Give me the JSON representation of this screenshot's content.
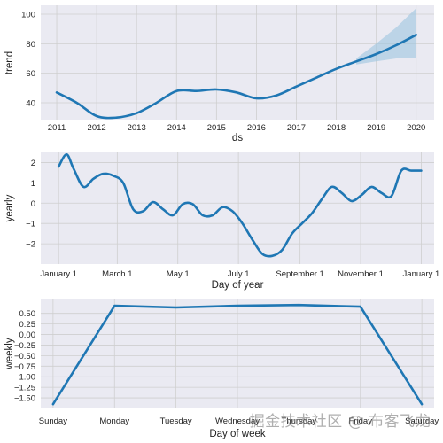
{
  "colors": {
    "line": "#1f77b4",
    "band": "#9cc4e0",
    "panel_bg": "#eaeaf2",
    "grid": "#cfcfcf"
  },
  "watermark": "掘金技术社区 @ 布客飞龙",
  "chart_data": [
    {
      "type": "line",
      "title": "",
      "xlabel": "ds",
      "ylabel": "trend",
      "grid": true,
      "xlim": [
        2010.6,
        2020.45
      ],
      "ylim": [
        28,
        106
      ],
      "x_ticks": [
        2011,
        2012,
        2013,
        2014,
        2015,
        2016,
        2017,
        2018,
        2019,
        2020
      ],
      "x_tick_labels": [
        "2011",
        "2012",
        "2013",
        "2014",
        "2015",
        "2016",
        "2017",
        "2018",
        "2019",
        "2020"
      ],
      "y_ticks": [
        40,
        60,
        80,
        100
      ],
      "y_tick_labels": [
        "40",
        "60",
        "80",
        "100"
      ],
      "series": [
        {
          "x": [
            2011.0,
            2011.5,
            2012.0,
            2012.5,
            2013.0,
            2013.5,
            2014.0,
            2014.5,
            2015.0,
            2015.5,
            2016.0,
            2016.5,
            2017.0,
            2017.5,
            2018.0,
            2018.5,
            2019.0,
            2019.5,
            2020.0
          ],
          "y": [
            47,
            40,
            31,
            30,
            33,
            40,
            48,
            48,
            49,
            47,
            43,
            45,
            51,
            57,
            63,
            68,
            73,
            79,
            86
          ]
        }
      ],
      "uncertainty_band": {
        "x": [
          2018.5,
          2019.0,
          2019.5,
          2020.0
        ],
        "upper": [
          70,
          80,
          91,
          104
        ],
        "lower": [
          66,
          68,
          70,
          70
        ]
      }
    },
    {
      "type": "line",
      "title": "",
      "xlabel": "Day of year",
      "ylabel": "yearly",
      "grid": true,
      "xlim": [
        -18,
        378
      ],
      "ylim": [
        -3,
        2.5
      ],
      "x_ticks": [
        0,
        59,
        120,
        181,
        243,
        304,
        365
      ],
      "x_tick_labels": [
        "January 1",
        "March 1",
        "May 1",
        "July 1",
        "September 1",
        "November 1",
        "January 1"
      ],
      "y_ticks": [
        -2,
        -1,
        0,
        1,
        2
      ],
      "y_tick_labels": [
        "−2",
        "−1",
        "0",
        "1",
        "2"
      ],
      "series": [
        {
          "x": [
            0,
            8,
            15,
            25,
            35,
            45,
            55,
            65,
            75,
            85,
            95,
            105,
            115,
            125,
            135,
            145,
            155,
            165,
            175,
            185,
            195,
            205,
            215,
            225,
            235,
            245,
            255,
            265,
            275,
            285,
            295,
            305,
            315,
            325,
            335,
            345,
            355,
            365
          ],
          "y": [
            1.8,
            2.4,
            1.7,
            0.8,
            1.2,
            1.45,
            1.35,
            1.0,
            -0.3,
            -0.4,
            0.05,
            -0.3,
            -0.6,
            -0.05,
            -0.05,
            -0.6,
            -0.6,
            -0.2,
            -0.4,
            -1.0,
            -1.8,
            -2.5,
            -2.6,
            -2.3,
            -1.5,
            -1.0,
            -0.5,
            0.2,
            0.8,
            0.5,
            0.1,
            0.4,
            0.8,
            0.5,
            0.35,
            1.6,
            1.6,
            1.6
          ]
        }
      ]
    },
    {
      "type": "line",
      "title": "",
      "xlabel": "Day of week",
      "ylabel": "weekly",
      "grid": true,
      "xlim": [
        -0.2,
        6.2
      ],
      "ylim": [
        -1.75,
        0.85
      ],
      "x_ticks": [
        0,
        1,
        2,
        3,
        4,
        5,
        6
      ],
      "x_tick_labels": [
        "Sunday",
        "Monday",
        "Tuesday",
        "Wednesday",
        "Thursday",
        "Friday",
        "Saturday"
      ],
      "y_ticks": [
        0.5,
        0.0,
        -0.5,
        -1.0,
        -1.5
      ],
      "y_tick_labels": [
        "0.50",
        "0.25",
        "0.00",
        "−0.25",
        "−0.50",
        "−0.75",
        "−1.00",
        "−1.25",
        "−1.50"
      ],
      "y_tick_values": [
        0.5,
        0.25,
        0.0,
        -0.25,
        -0.5,
        -0.75,
        -1.0,
        -1.25,
        -1.5
      ],
      "series": [
        {
          "x": [
            0,
            1,
            2,
            3,
            4,
            5,
            6
          ],
          "y": [
            -1.65,
            0.68,
            0.64,
            0.68,
            0.7,
            0.66,
            -1.65
          ]
        }
      ]
    }
  ]
}
